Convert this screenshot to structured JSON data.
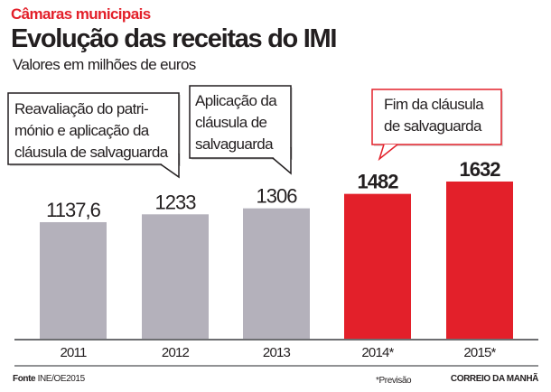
{
  "header": {
    "kicker": "Câmaras municipais",
    "title": "Evolução das receitas do IMI",
    "subtitle": "Valores em milhões de euros"
  },
  "chart_data": {
    "type": "bar",
    "categories": [
      "2011",
      "2012",
      "2013",
      "2014*",
      "2015*"
    ],
    "values": [
      1137.6,
      1233,
      1306,
      1482,
      1632
    ],
    "value_labels": [
      "1137,6",
      "1233",
      "1306",
      "1482",
      "1632"
    ],
    "bar_colors": [
      "#b4b1bb",
      "#b4b1bb",
      "#b4b1bb",
      "#e3202a",
      "#e3202a"
    ],
    "highlight_color": "#e3202a",
    "annotations": [
      {
        "category": "2011",
        "lines": [
          "Reavaliação do patri-",
          "mónio e aplicação da",
          "cláusula de salvaguarda"
        ],
        "border": "#231f20"
      },
      {
        "category": "2013",
        "lines": [
          "Aplicação da",
          "cláusula de",
          "salvaguarda"
        ],
        "border": "#231f20"
      },
      {
        "category": "2014*",
        "lines": [
          "Fim da cláusula",
          "de salvaguarda"
        ],
        "border": "#e3202a"
      }
    ],
    "grid": false
  },
  "footer": {
    "source_label": "Fonte",
    "source": "INE/OE2015",
    "note": "*Previsão",
    "brand": "CORREIO DA MANHÃ"
  }
}
